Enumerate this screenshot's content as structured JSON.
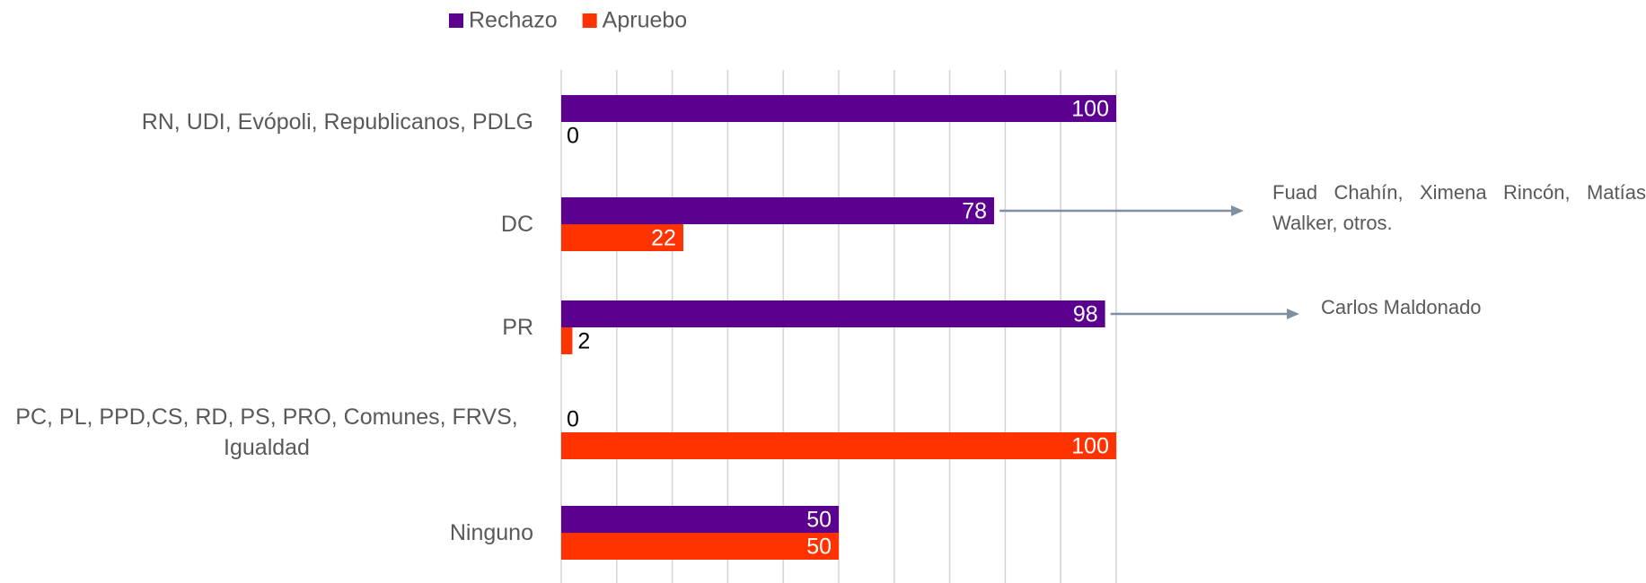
{
  "chart_data": {
    "type": "bar",
    "orientation": "horizontal",
    "categories": [
      "RN, UDI, Evópoli, Republicanos, PDLG",
      "DC",
      "PR",
      "PC, PL, PPD,CS, RD, PS, PRO, Comunes, FRVS, Igualdad",
      "Ninguno"
    ],
    "series": [
      {
        "name": "Rechazo",
        "color": "#5c008f",
        "values": [
          100,
          78,
          98,
          0,
          50
        ]
      },
      {
        "name": "Apruebo",
        "color": "#ff3300",
        "values": [
          0,
          22,
          2,
          100,
          50
        ]
      }
    ],
    "xlim": [
      0,
      100
    ],
    "xticks": [
      0,
      10,
      20,
      30,
      40,
      50,
      60,
      70,
      80,
      90,
      100
    ],
    "grid": true,
    "legend": "top",
    "annotations": [
      {
        "text": "Fuad Chahín, Ximena Rincón, Matías Walker, otros.",
        "category": 1,
        "series": 0
      },
      {
        "text": "Carlos Maldonado",
        "category": 2,
        "series": 0
      }
    ]
  }
}
